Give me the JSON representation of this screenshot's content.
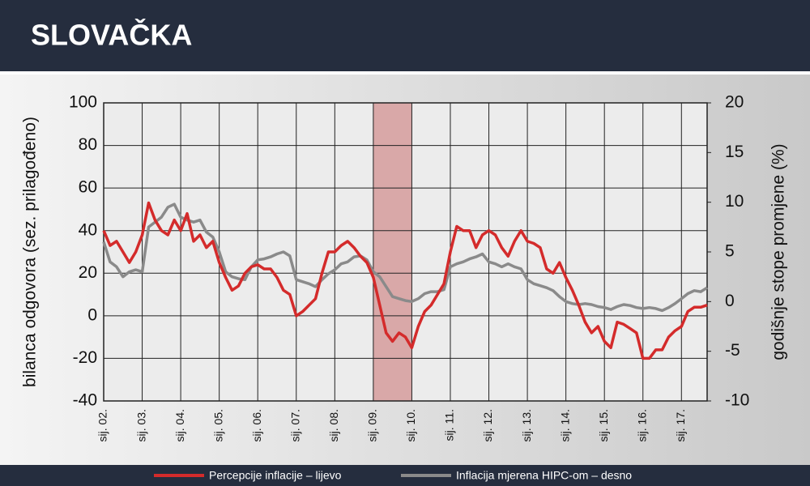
{
  "header": {
    "title": "SLOVAČKA"
  },
  "chart_data": {
    "type": "line",
    "ylabel": "bilanca odgovora (sez. prilagođeno)",
    "y2label": "godišnje stope promjene (%)",
    "categories": [
      "sij. 02.",
      null,
      null,
      null,
      null,
      null,
      "sij. 03.",
      null,
      null,
      null,
      null,
      null,
      "sij. 04.",
      null,
      null,
      null,
      null,
      null,
      "sij. 05.",
      null,
      null,
      null,
      null,
      null,
      "sij. 06.",
      null,
      null,
      null,
      null,
      null,
      "sij. 07.",
      null,
      null,
      null,
      null,
      null,
      "sij. 08.",
      null,
      null,
      null,
      null,
      null,
      "sij. 09.",
      null,
      null,
      null,
      null,
      null,
      "sij. 10.",
      null,
      null,
      null,
      null,
      null,
      "sij. 11.",
      null,
      null,
      null,
      null,
      null,
      "sij. 12.",
      null,
      null,
      null,
      null,
      null,
      "sij. 13.",
      null,
      null,
      null,
      null,
      null,
      "sij. 14.",
      null,
      null,
      null,
      null,
      null,
      "sij. 15.",
      null,
      null,
      null,
      null,
      null,
      "sij. 16.",
      null,
      null,
      null,
      null,
      null,
      "sij. 17.",
      null,
      null,
      null,
      null
    ],
    "shaded": [
      "sij. 09.",
      "sij. 10."
    ],
    "shade_color": "#d9a8a8",
    "series": [
      {
        "name": "Percepcije inflacije – lijevo",
        "color": "#d42b2b",
        "values": [
          40,
          33,
          35,
          30,
          25,
          30,
          38,
          53,
          45,
          40,
          38,
          45,
          40,
          48,
          35,
          38,
          32,
          35,
          25,
          18,
          12,
          14,
          20,
          23,
          24,
          22,
          22,
          18,
          12,
          10,
          0,
          2,
          5,
          8,
          20,
          30,
          30,
          33,
          35,
          32,
          28,
          25,
          18,
          5,
          -8,
          -12,
          -8,
          -10,
          -15,
          -5,
          2,
          5,
          10,
          15,
          30,
          42,
          40,
          40,
          32,
          38,
          40,
          38,
          32,
          28,
          35,
          40,
          35,
          34,
          32,
          22,
          20,
          25,
          18,
          12,
          5,
          -3,
          -8,
          -5,
          -12,
          -15,
          -3,
          -4,
          -6,
          -8,
          -20,
          -20,
          -16,
          -16,
          -10,
          -7,
          -5,
          2,
          4,
          4,
          5
        ]
      },
      {
        "name": "Inflacija mjerena HIPC-om – desno",
        "color": "#8a8a8a",
        "axis": "y2",
        "values": [
          6,
          4,
          3.5,
          2.5,
          3,
          3.2,
          3,
          7.5,
          8,
          8.5,
          9.5,
          9.8,
          8.5,
          8.2,
          8,
          8.2,
          7,
          6.5,
          5,
          3,
          2.5,
          2.3,
          2.2,
          3.5,
          4.2,
          4.3,
          4.5,
          4.8,
          5,
          4.6,
          2.2,
          2,
          1.8,
          1.5,
          2.2,
          2.8,
          3.2,
          3.8,
          4,
          4.5,
          4.6,
          4.2,
          3,
          2.5,
          1.5,
          0.5,
          0.3,
          0.1,
          0,
          0.3,
          0.8,
          1,
          1,
          1.2,
          3.5,
          3.8,
          4,
          4.3,
          4.5,
          4.8,
          4,
          3.8,
          3.5,
          3.8,
          3.5,
          3.3,
          2.2,
          1.8,
          1.6,
          1.4,
          1.1,
          0.5,
          0,
          -0.2,
          -0.3,
          -0.2,
          -0.3,
          -0.5,
          -0.6,
          -0.8,
          -0.5,
          -0.3,
          -0.4,
          -0.6,
          -0.7,
          -0.6,
          -0.7,
          -0.9,
          -0.6,
          -0.2,
          0.3,
          0.8,
          1.1,
          1,
          1.4
        ]
      }
    ],
    "ylim": [
      -40,
      100
    ],
    "yticks": [
      -40,
      -20,
      0,
      20,
      40,
      60,
      80,
      100
    ],
    "y2lim": [
      -10,
      20
    ],
    "y2ticks": [
      -10,
      -5,
      0,
      5,
      10,
      15,
      20
    ],
    "grid": true
  }
}
